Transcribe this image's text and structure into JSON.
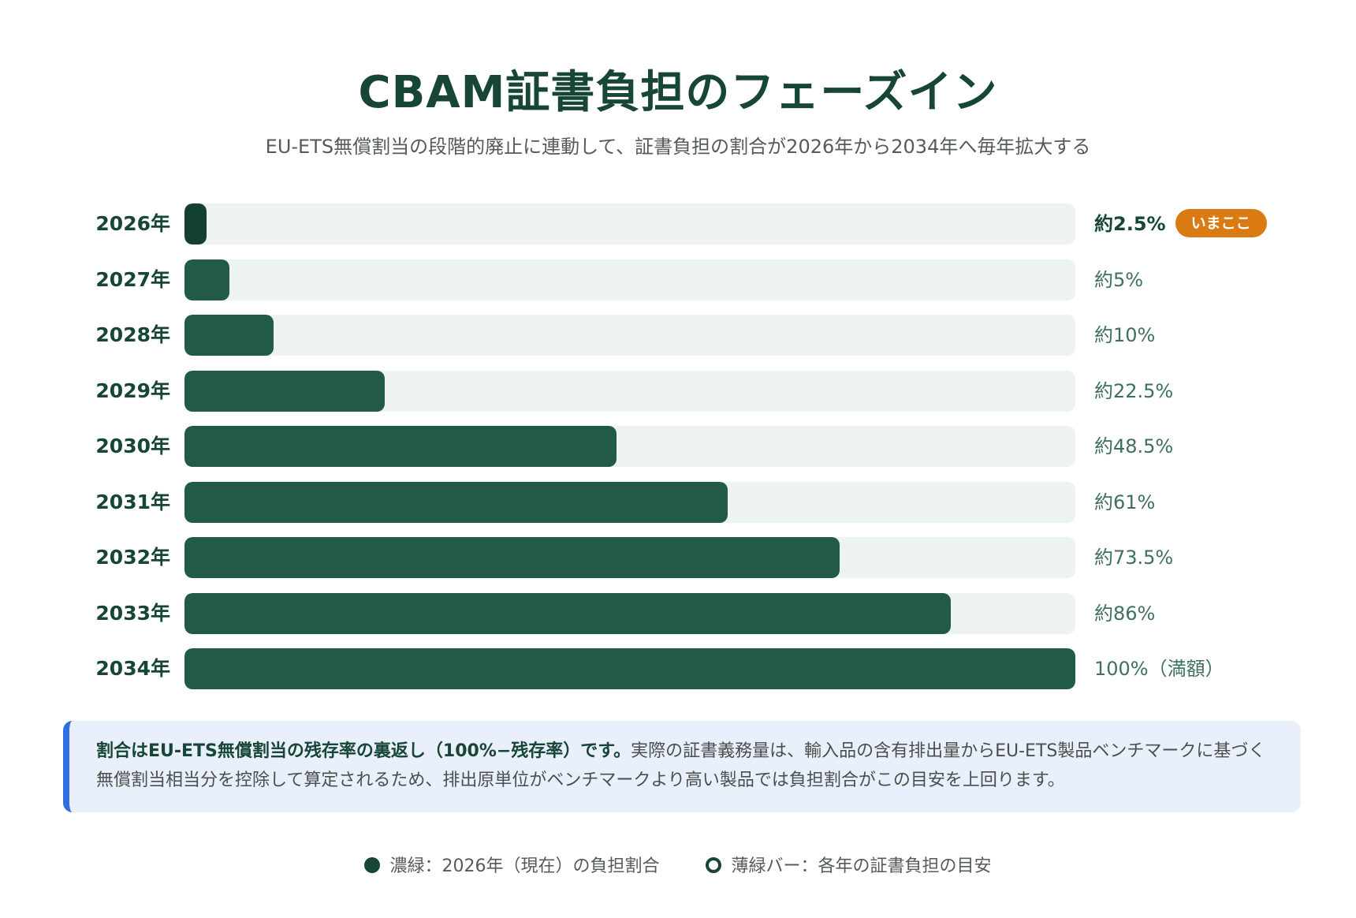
{
  "header": {
    "title": "CBAM証書負担のフェーズイン",
    "subtitle": "EU-ETS無償割当の段階的廃止に連動して、証書負担の割合が2026年から2034年へ毎年拡大する"
  },
  "chart_data": {
    "type": "bar",
    "orientation": "horizontal",
    "title": "CBAM証書負担のフェーズイン",
    "subtitle": "EU-ETS無償割当の段階的廃止に連動して、証書負担の割合が2026年から2034年へ毎年拡大する",
    "categories": [
      "2026年",
      "2027年",
      "2028年",
      "2029年",
      "2030年",
      "2031年",
      "2032年",
      "2033年",
      "2034年"
    ],
    "values": [
      2.5,
      5,
      10,
      22.5,
      48.5,
      61,
      73.5,
      86,
      100
    ],
    "value_labels": [
      "約2.5%",
      "約5%",
      "約10%",
      "約22.5%",
      "約48.5%",
      "約61%",
      "約73.5%",
      "約86%",
      "100%（満額）"
    ],
    "xlim": [
      0,
      100
    ],
    "current_index": 0,
    "current_badge": "いまここ",
    "colors": {
      "fill": "#215b48",
      "current_fill": "#13402f",
      "track": "#edf3ef",
      "badge": "#d97a12"
    }
  },
  "note": {
    "bold": "割合はEU-ETS無償割当の残存率の裏返し（100%−残存率）です。",
    "text": "実際の証書義務量は、輸入品の含有排出量からEU-ETS製品ベンチマークに基づく無償割当相当分を控除して算定されるため、排出原単位がベンチマークより高い製品では負担割合がこの目安を上回ります。",
    "accent_color": "#2f6fe0"
  },
  "legend": {
    "items": [
      {
        "label": "濃緑：2026年（現在）の負担割合",
        "icon": "filled-circle-icon"
      },
      {
        "label": "薄緑バー：各年の証書負担の目安",
        "icon": "hollow-circle-icon"
      }
    ]
  }
}
